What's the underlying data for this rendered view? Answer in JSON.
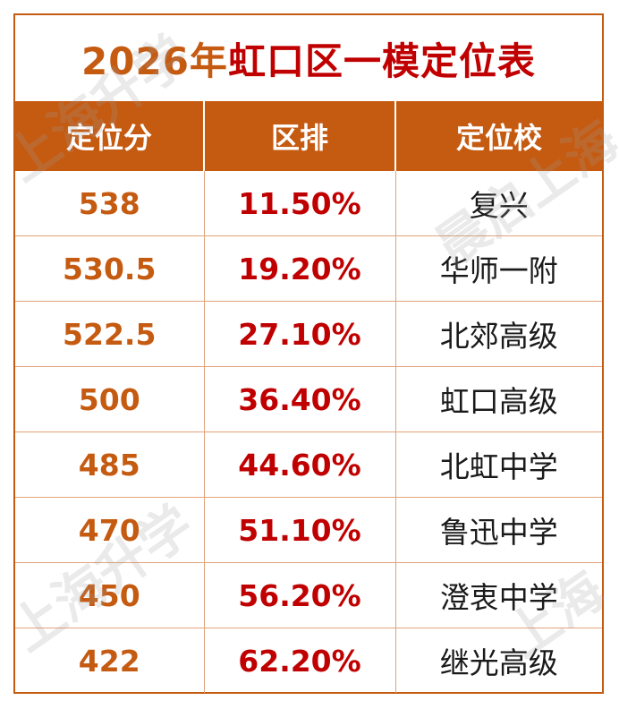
{
  "title": {
    "year": "2026年",
    "rest": "虹口区一模定位表"
  },
  "columns": [
    "定位分",
    "区排",
    "定位校"
  ],
  "rows": [
    {
      "score": "538",
      "rank": "11.50%",
      "school": "复兴"
    },
    {
      "score": "530.5",
      "rank": "19.20%",
      "school": "华师一附"
    },
    {
      "score": "522.5",
      "rank": "27.10%",
      "school": "北郊高级"
    },
    {
      "score": "500",
      "rank": "36.40%",
      "school": "虹口高级"
    },
    {
      "score": "485",
      "rank": "44.60%",
      "school": "北虹中学"
    },
    {
      "score": "470",
      "rank": "51.10%",
      "school": "鲁迅中学"
    },
    {
      "score": "450",
      "rank": "56.20%",
      "school": "澄衷中学"
    },
    {
      "score": "422",
      "rank": "62.20%",
      "school": "继光高级"
    }
  ],
  "watermarks": [
    "上海升学",
    "晨启上海",
    "上海升学",
    "上海"
  ],
  "colors": {
    "header_bg": "#c55a11",
    "score_text": "#c55a11",
    "rank_text": "#c00000",
    "title_accent": "#c00000",
    "border": "#e2a37a"
  }
}
